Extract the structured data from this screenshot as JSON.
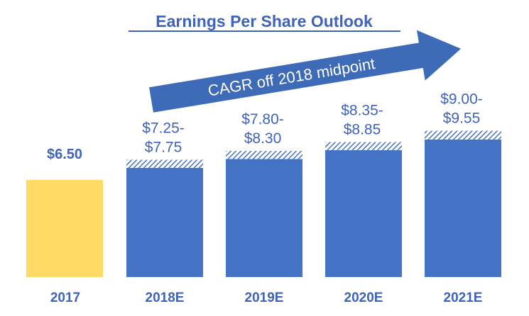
{
  "chart_data": {
    "type": "bar",
    "title": "Earnings Per Share Outlook",
    "categories": [
      "2017",
      "2018E",
      "2019E",
      "2020E",
      "2021E"
    ],
    "actual": [
      {
        "category": "2017",
        "value": 6.5,
        "label": "$6.50"
      }
    ],
    "estimate_ranges": [
      {
        "category": "2018E",
        "low": 7.25,
        "high": 7.75,
        "label_lines": [
          "$7.25-",
          "$7.75"
        ]
      },
      {
        "category": "2019E",
        "low": 7.8,
        "high": 8.3,
        "label_lines": [
          "$7.80-",
          "$8.30"
        ]
      },
      {
        "category": "2020E",
        "low": 8.35,
        "high": 8.85,
        "label_lines": [
          "$8.35-",
          "$8.85"
        ]
      },
      {
        "category": "2021E",
        "low": 9.0,
        "high": 9.55,
        "label_lines": [
          "$9.00-",
          "$9.55"
        ]
      }
    ],
    "annotation": "CAGR off 2018 midpoint",
    "ylim": [
      0,
      10.5
    ],
    "grid": false
  },
  "colors": {
    "title": "#3F63B8",
    "actual_bar": "#FFD966",
    "estimate_bar": "#4472C4",
    "range_hatch": "#4472C4",
    "arrow": "#3E6BB8",
    "arrow_text": "#FFFFFF",
    "labels": "#3F63B8"
  }
}
